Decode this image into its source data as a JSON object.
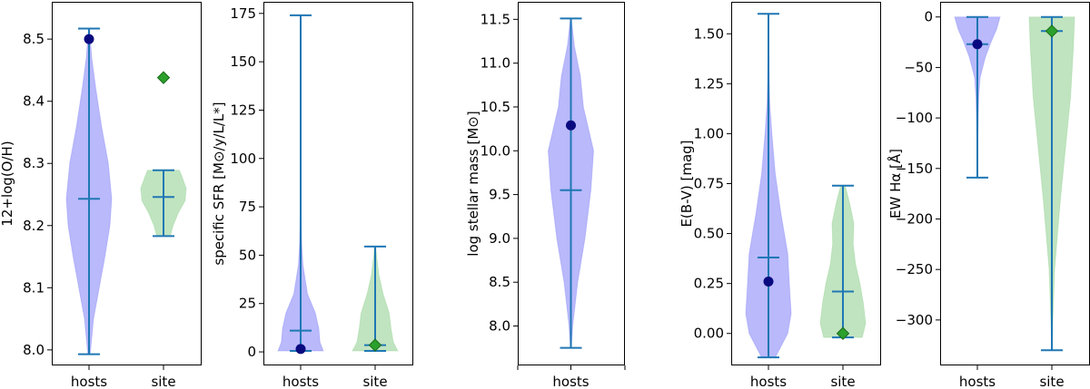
{
  "colors": {
    "hosts_fill": "#8080f8",
    "site_fill": "#8ccd8c",
    "stat_line": "#1f77b4",
    "hosts_marker": "#0a0a80",
    "site_marker": "#2ca02c",
    "site_marker_edge": "#1a6a1a"
  },
  "chart_data": [
    {
      "type": "violin",
      "ylabel": "12+log(O/H)",
      "ylim": [
        7.975,
        8.56
      ],
      "yticks": [
        "8.0",
        "8.1",
        "8.2",
        "8.3",
        "8.4",
        "8.5"
      ],
      "ytick_values": [
        8.0,
        8.1,
        8.2,
        8.3,
        8.4,
        8.5
      ],
      "categories": [
        "hosts",
        "site"
      ],
      "series": [
        {
          "name": "hosts",
          "min": 7.993,
          "max": 8.517,
          "median": 8.243,
          "point": 8.5,
          "marker": "circle",
          "density": [
            [
              7.993,
              0.05
            ],
            [
              8.05,
              0.2
            ],
            [
              8.1,
              0.45
            ],
            [
              8.15,
              0.7
            ],
            [
              8.2,
              0.92
            ],
            [
              8.243,
              1.0
            ],
            [
              8.3,
              0.85
            ],
            [
              8.36,
              0.55
            ],
            [
              8.42,
              0.3
            ],
            [
              8.47,
              0.12
            ],
            [
              8.517,
              0.02
            ]
          ]
        },
        {
          "name": "site",
          "min": 8.183,
          "max": 8.289,
          "median": 8.246,
          "point": 8.438,
          "marker": "diamond",
          "density": [
            [
              8.183,
              0.3
            ],
            [
              8.2,
              0.42
            ],
            [
              8.22,
              0.65
            ],
            [
              8.24,
              0.95
            ],
            [
              8.26,
              1.0
            ],
            [
              8.28,
              0.8
            ],
            [
              8.289,
              0.7
            ]
          ]
        }
      ]
    },
    {
      "type": "violin",
      "ylabel": "specific SFR [M⊙/y/L/L*]",
      "ylim": [
        -7,
        181
      ],
      "yticks": [
        "0",
        "25",
        "50",
        "75",
        "100",
        "125",
        "150",
        "175"
      ],
      "ytick_values": [
        0,
        25,
        50,
        75,
        100,
        125,
        150,
        175
      ],
      "categories": [
        "hosts",
        "site"
      ],
      "series": [
        {
          "name": "hosts",
          "min": 0.5,
          "max": 174,
          "median": 11,
          "point": 1.5,
          "marker": "circle",
          "density": [
            [
              0.5,
              1.0
            ],
            [
              5,
              0.85
            ],
            [
              12,
              0.8
            ],
            [
              20,
              0.65
            ],
            [
              30,
              0.3
            ],
            [
              45,
              0.1
            ],
            [
              55,
              0.05
            ],
            [
              70,
              0.02
            ],
            [
              174,
              0.0
            ]
          ]
        },
        {
          "name": "site",
          "min": 0.5,
          "max": 54.5,
          "median": 3.5,
          "point": 3.5,
          "marker": "diamond",
          "density": [
            [
              0.5,
              1.0
            ],
            [
              5,
              0.8
            ],
            [
              12,
              0.7
            ],
            [
              20,
              0.62
            ],
            [
              30,
              0.35
            ],
            [
              40,
              0.16
            ],
            [
              50,
              0.06
            ],
            [
              54.5,
              0.03
            ]
          ]
        }
      ]
    },
    {
      "type": "violin",
      "ylabel": "log stellar mass [M⊙]",
      "ylim": [
        7.55,
        11.7
      ],
      "yticks": [
        "8.0",
        "8.5",
        "9.0",
        "9.5",
        "10.0",
        "10.5",
        "11.0",
        "11.5"
      ],
      "ytick_values": [
        8.0,
        8.5,
        9.0,
        9.5,
        10.0,
        10.5,
        11.0,
        11.5
      ],
      "categories": [
        "hosts"
      ],
      "series": [
        {
          "name": "hosts",
          "min": 7.75,
          "max": 11.51,
          "median": 9.55,
          "point": 10.29,
          "marker": "circle",
          "density": [
            [
              7.75,
              0.02
            ],
            [
              8.0,
              0.08
            ],
            [
              8.5,
              0.3
            ],
            [
              9.0,
              0.62
            ],
            [
              9.55,
              0.88
            ],
            [
              10.0,
              1.0
            ],
            [
              10.5,
              0.55
            ],
            [
              10.85,
              0.42
            ],
            [
              11.2,
              0.15
            ],
            [
              11.51,
              0.02
            ]
          ]
        }
      ]
    },
    {
      "type": "violin",
      "ylabel": "E(B-V) [mag]",
      "ylim": [
        -0.16,
        1.66
      ],
      "yticks": [
        "0.00",
        "0.25",
        "0.50",
        "0.75",
        "1.00",
        "1.25",
        "1.50"
      ],
      "ytick_values": [
        0,
        0.25,
        0.5,
        0.75,
        1.0,
        1.25,
        1.5
      ],
      "categories": [
        "hosts",
        "site"
      ],
      "series": [
        {
          "name": "hosts",
          "min": -0.12,
          "max": 1.6,
          "median": 0.38,
          "point": 0.26,
          "marker": "circle",
          "density": [
            [
              -0.12,
              0.3
            ],
            [
              0.0,
              0.85
            ],
            [
              0.1,
              1.0
            ],
            [
              0.25,
              0.92
            ],
            [
              0.4,
              0.85
            ],
            [
              0.6,
              0.55
            ],
            [
              0.8,
              0.3
            ],
            [
              1.0,
              0.15
            ],
            [
              1.15,
              0.06
            ],
            [
              1.3,
              0.03
            ],
            [
              1.6,
              0.0
            ]
          ]
        },
        {
          "name": "site",
          "min": -0.02,
          "max": 0.74,
          "median": 0.21,
          "point": 0.0,
          "marker": "diamond",
          "density": [
            [
              -0.02,
              0.85
            ],
            [
              0.05,
              1.0
            ],
            [
              0.15,
              0.9
            ],
            [
              0.25,
              0.75
            ],
            [
              0.35,
              0.55
            ],
            [
              0.45,
              0.45
            ],
            [
              0.55,
              0.48
            ],
            [
              0.65,
              0.3
            ],
            [
              0.74,
              0.1
            ]
          ]
        }
      ]
    },
    {
      "type": "violin",
      "ylabel": "EW Hα [Å]",
      "ylim": [
        -345,
        15
      ],
      "yticks": [
        "−300",
        "−250",
        "−200",
        "−150",
        "−100",
        "−50",
        "0"
      ],
      "ytick_values": [
        -300,
        -250,
        -200,
        -150,
        -100,
        -50,
        0
      ],
      "categories": [
        "hosts",
        "site"
      ],
      "series": [
        {
          "name": "hosts",
          "min": -159,
          "max": 0,
          "median": -27,
          "point": -27,
          "marker": "circle",
          "density": [
            [
              -159,
              0.0
            ],
            [
              -120,
              0.02
            ],
            [
              -80,
              0.06
            ],
            [
              -60,
              0.12
            ],
            [
              -40,
              0.35
            ],
            [
              -25,
              0.6
            ],
            [
              -12,
              0.85
            ],
            [
              0,
              1.0
            ]
          ]
        },
        {
          "name": "site",
          "min": -330,
          "max": 0,
          "median": -14,
          "point": -14,
          "marker": "diamond",
          "density": [
            [
              -330,
              0.0
            ],
            [
              -250,
              0.12
            ],
            [
              -180,
              0.38
            ],
            [
              -130,
              0.6
            ],
            [
              -80,
              0.82
            ],
            [
              -30,
              0.95
            ],
            [
              0,
              1.0
            ]
          ]
        }
      ]
    }
  ]
}
